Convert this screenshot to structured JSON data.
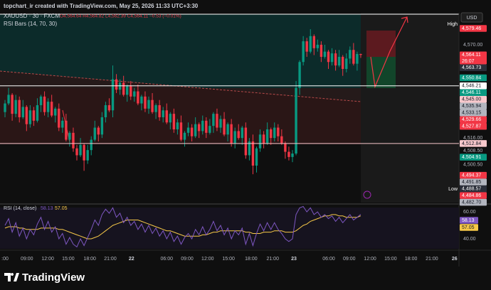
{
  "header": {
    "credit": "topchart_ir created with TradingView.com, May 25, 2026 11:33 UTC+3:30",
    "symbol": "XAUUSD · 30 · FXCM",
    "ohlc": "O4,564.64 H4,564.82 L4,562.39 C4,564.11 −0.53 (−0.01%)",
    "indicator": "RSI Bars (14, 70, 30)",
    "currency": "USD"
  },
  "footer": {
    "brand": "TradingView"
  },
  "chart_data": [
    {
      "type": "candlestick",
      "up_color": "#089981",
      "down_color": "#f23645",
      "open": [
        4531,
        4536,
        4541,
        4530,
        4538,
        4528,
        4534,
        4524,
        4532,
        4526,
        4535,
        4540,
        4531,
        4537,
        4529,
        4533,
        4522,
        4526,
        4515,
        4519,
        4510,
        4506,
        4512,
        4503,
        4509,
        4515,
        4522,
        4518,
        4528,
        4535,
        4532,
        4550,
        4544,
        4548,
        4541,
        4546,
        4540,
        4543,
        4536,
        4540,
        4533,
        4538,
        4531,
        4535,
        4528,
        4532,
        4525,
        4530,
        4521,
        4525,
        4515,
        4519,
        4522,
        4517,
        4524,
        4520,
        4526,
        4519,
        4523,
        4530,
        4522,
        4527,
        4518,
        4524,
        4513,
        4520,
        4516,
        4522,
        4506,
        4514,
        4500,
        4510,
        4518,
        4513,
        4521,
        4516,
        4522,
        4517,
        4513,
        4508,
        4505,
        4507,
        4545,
        4560,
        4572,
        4566,
        4575,
        4568,
        4570,
        4563,
        4566,
        4560,
        4565,
        4558,
        4563,
        4556,
        4562,
        4567,
        4559,
        4564.64
      ],
      "high": [
        4538,
        4545,
        4542,
        4541,
        4540,
        4538,
        4535,
        4535,
        4534,
        4539,
        4541,
        4543,
        4539,
        4541,
        4534,
        4536,
        4528,
        4530,
        4520,
        4522,
        4512,
        4516,
        4513,
        4512,
        4517,
        4526,
        4523,
        4531,
        4537,
        4539,
        4558,
        4553,
        4550,
        4552,
        4547,
        4549,
        4545,
        4547,
        4541,
        4543,
        4540,
        4542,
        4536,
        4538,
        4534,
        4536,
        4531,
        4533,
        4527,
        4529,
        4520,
        4525,
        4524,
        4528,
        4525,
        4529,
        4528,
        4527,
        4531,
        4533,
        4529,
        4531,
        4525,
        4527,
        4522,
        4524,
        4523,
        4525,
        4516,
        4518,
        4511,
        4521,
        4520,
        4525,
        4522,
        4525,
        4524,
        4521,
        4514,
        4511,
        4509,
        4549,
        4561,
        4575,
        4574,
        4579,
        4576,
        4573,
        4572,
        4570,
        4567,
        4568,
        4567,
        4567,
        4564,
        4565,
        4569,
        4571,
        4566,
        4564.82
      ],
      "low": [
        4528,
        4535,
        4526,
        4528,
        4525,
        4527,
        4520,
        4522,
        4523,
        4525,
        4531,
        4529,
        4528,
        4528,
        4525,
        4520,
        4519,
        4514,
        4511,
        4508,
        4503,
        4505,
        4497,
        4501,
        4506,
        4514,
        4514,
        4516,
        4525,
        4531,
        4528,
        4542,
        4541,
        4540,
        4537,
        4538,
        4537,
        4535,
        4532,
        4531,
        4530,
        4530,
        4527,
        4526,
        4525,
        4524,
        4521,
        4519,
        4518,
        4514,
        4511,
        4517,
        4514,
        4516,
        4516,
        4518,
        4516,
        4518,
        4519,
        4520,
        4519,
        4517,
        4514,
        4511,
        4510,
        4515,
        4512,
        4504,
        4503,
        4495,
        4496,
        4508,
        4510,
        4512,
        4512,
        4514,
        4514,
        4512,
        4504,
        4503,
        4502,
        4506,
        4541,
        4558,
        4563,
        4565,
        4564,
        4566,
        4560,
        4562,
        4556,
        4558,
        4555,
        4557,
        4552,
        4554,
        4559,
        4558,
        4555,
        4562.39
      ],
      "close": [
        4536,
        4541,
        4530,
        4538,
        4528,
        4534,
        4524,
        4532,
        4526,
        4535,
        4540,
        4531,
        4537,
        4529,
        4533,
        4522,
        4526,
        4515,
        4519,
        4510,
        4506,
        4512,
        4503,
        4509,
        4515,
        4522,
        4518,
        4528,
        4535,
        4532,
        4550,
        4544,
        4548,
        4541,
        4546,
        4540,
        4543,
        4536,
        4540,
        4533,
        4538,
        4531,
        4535,
        4528,
        4532,
        4525,
        4530,
        4521,
        4525,
        4515,
        4519,
        4522,
        4517,
        4524,
        4520,
        4526,
        4519,
        4523,
        4530,
        4522,
        4527,
        4518,
        4524,
        4513,
        4520,
        4516,
        4522,
        4506,
        4514,
        4500,
        4510,
        4518,
        4513,
        4521,
        4516,
        4522,
        4517,
        4513,
        4508,
        4505,
        4507,
        4545,
        4560,
        4572,
        4566,
        4575,
        4568,
        4570,
        4563,
        4566,
        4560,
        4565,
        4558,
        4563,
        4556,
        4562,
        4567,
        4559,
        4564.64,
        4564.11
      ],
      "xlim": [
        -1.39,
        126.34
      ],
      "ylim": [
        4478.6,
        4588.5
      ],
      "xticks": [
        {
          "value": 0,
          "label": ":00"
        },
        {
          "value": 6.1,
          "label": "09:00"
        },
        {
          "value": 11.9,
          "label": "12:00"
        },
        {
          "value": 17.6,
          "label": "15:00"
        },
        {
          "value": 23.6,
          "label": "18:00"
        },
        {
          "value": 29.3,
          "label": "21:00"
        },
        {
          "value": 35.2,
          "label": "22"
        },
        {
          "value": 45,
          "label": "06:00"
        },
        {
          "value": 50.7,
          "label": "09:00"
        },
        {
          "value": 56.4,
          "label": "12:00"
        },
        {
          "value": 62.2,
          "label": "15:00"
        },
        {
          "value": 68.5,
          "label": "18:00"
        },
        {
          "value": 74.5,
          "label": "21:00"
        },
        {
          "value": 80.4,
          "label": "23"
        },
        {
          "value": 90.1,
          "label": "06:00"
        },
        {
          "value": 95.8,
          "label": "09:00"
        },
        {
          "value": 101.6,
          "label": "12:00"
        },
        {
          "value": 107.3,
          "label": "15:00"
        },
        {
          "value": 113,
          "label": "18:00"
        },
        {
          "value": 118.8,
          "label": "21:00"
        },
        {
          "value": 125.1,
          "label": "26"
        }
      ],
      "yticks": [
        {
          "value": 4570,
          "label": "4,570.00"
        },
        {
          "value": 4516,
          "label": "4,516.00"
        },
        {
          "value": 4508.5,
          "label": "4,508.50"
        },
        {
          "value": 4500.5,
          "label": "4,500.50"
        }
      ],
      "grid": false,
      "countdown": "26:07",
      "high_tag": "High",
      "low_tag": "Low",
      "price_labels": [
        {
          "value": 4579.46,
          "label": "4,579.46",
          "color": "#f23645"
        },
        {
          "value": 4564.11,
          "label": "4,564.11",
          "color": "#f23645"
        },
        {
          "value": 4563.73,
          "label": "4,563.73",
          "color": "#2a2e39"
        },
        {
          "value": 4550.84,
          "label": "4,550.84",
          "color": "#089981"
        },
        {
          "value": 4546.21,
          "label": "4,546.21",
          "color": "#ffffff",
          "line": true
        },
        {
          "value": 4546.11,
          "label": "4,546.11",
          "color": "#089981"
        },
        {
          "value": 4545,
          "label": "4,545.00",
          "color": "#f8c8cc"
        },
        {
          "value": 4535.94,
          "label": "4,535.94",
          "color": "#b2b5be"
        },
        {
          "value": 4533.15,
          "label": "4,533.15",
          "color": "#b2b5be"
        },
        {
          "value": 4529.66,
          "label": "4,529.66",
          "color": "#f23645"
        },
        {
          "value": 4527.87,
          "label": "4,527.87",
          "color": "#f23645"
        },
        {
          "value": 4512.84,
          "label": "4,512.84",
          "color": "#f8c8cc",
          "line": true
        },
        {
          "value": 4504.91,
          "label": "4,504.91",
          "color": "#089981"
        },
        {
          "value": 4494.37,
          "label": "4,494.37",
          "color": "#f23645"
        },
        {
          "value": 4491.85,
          "label": "4,491.85",
          "color": "#b2b5be"
        },
        {
          "value": 4488.57,
          "label": "4,488.57",
          "color": "#2a2e39"
        },
        {
          "value": 4484.86,
          "label": "4,484.86",
          "color": "#f23645"
        },
        {
          "value": 4482.7,
          "label": "4,482.70",
          "color": "#b2b5be"
        }
      ]
    },
    {
      "type": "line",
      "title": "RSI (14, close)",
      "ylim": [
        31.6,
        65.3
      ],
      "yticks": [
        {
          "value": 60,
          "label": "60.00"
        },
        {
          "value": 40,
          "label": "40.00"
        }
      ],
      "series": [
        {
          "color": "#7e57c2",
          "values": [
            50,
            55,
            45,
            52,
            42,
            48,
            40,
            47,
            43,
            51,
            56,
            47,
            53,
            45,
            49,
            40,
            44,
            36,
            41,
            36,
            34,
            40,
            35,
            41,
            47,
            54,
            50,
            58,
            62,
            59,
            63,
            56,
            59,
            52,
            56,
            50,
            53,
            47,
            51,
            45,
            50,
            44,
            48,
            42,
            46,
            40,
            45,
            38,
            42,
            36,
            41,
            44,
            40,
            47,
            43,
            49,
            43,
            47,
            53,
            46,
            50,
            43,
            48,
            40,
            46,
            43,
            48,
            36,
            44,
            35,
            44,
            51,
            46,
            52,
            47,
            52,
            47,
            44,
            40,
            38,
            40,
            58,
            63,
            64,
            60,
            63,
            58,
            60,
            56,
            58,
            55,
            57,
            53,
            56,
            52,
            55,
            58,
            54,
            56,
            58.13
          ]
        },
        {
          "color": "#f7c948",
          "values": [
            48,
            49,
            49,
            49,
            48,
            48,
            47,
            47,
            47,
            47,
            48,
            48,
            48,
            48,
            48,
            47,
            47,
            46,
            45,
            44,
            43,
            42,
            41,
            40,
            40,
            41,
            42,
            44,
            46,
            48,
            50,
            51,
            52,
            53,
            54,
            54,
            54,
            54,
            53,
            52,
            51,
            50,
            49,
            48,
            47,
            46,
            46,
            45,
            44,
            43,
            42,
            42,
            42,
            42,
            42,
            43,
            43,
            44,
            45,
            45,
            46,
            46,
            46,
            46,
            46,
            46,
            46,
            45,
            45,
            44,
            44,
            44,
            45,
            45,
            45,
            46,
            46,
            46,
            45,
            45,
            45,
            46,
            48,
            50,
            51,
            53,
            54,
            55,
            56,
            57,
            57,
            58,
            58,
            57,
            57,
            56,
            56,
            56,
            56,
            57.05
          ]
        }
      ]
    }
  ]
}
